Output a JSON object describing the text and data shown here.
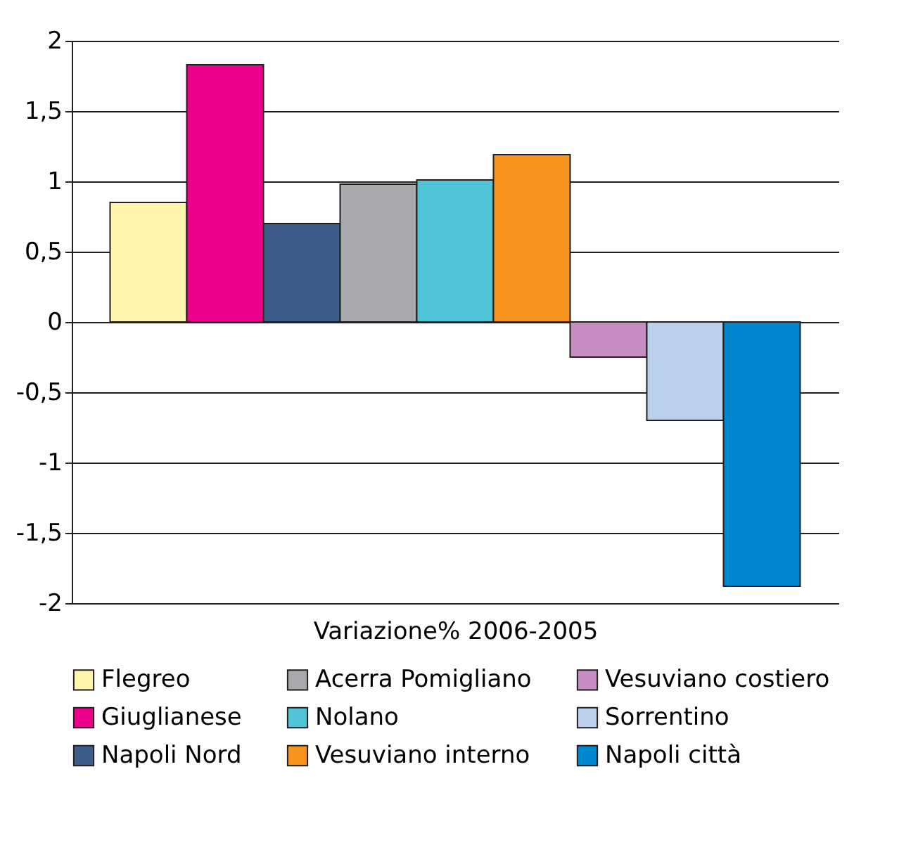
{
  "chart_data": {
    "type": "bar",
    "xlabel": "Variazione% 2006-2005",
    "categories": [
      null,
      null,
      null,
      null,
      null,
      null,
      null,
      null,
      null
    ],
    "series": [
      {
        "name": "Flegreo",
        "color": "#fff5ad",
        "values": [
          0.85,
          null,
          null,
          null,
          null,
          null,
          null,
          null,
          null
        ]
      },
      {
        "name": "Giuglianese",
        "color": "#ec008c",
        "values": [
          null,
          1.83,
          null,
          null,
          null,
          null,
          null,
          null,
          null
        ]
      },
      {
        "name": "Napoli Nord",
        "color": "#3d5d8b",
        "values": [
          null,
          null,
          0.7,
          null,
          null,
          null,
          null,
          null,
          null
        ]
      },
      {
        "name": "Acerra Pomigliano",
        "color": "#a7a9ac",
        "values": [
          null,
          null,
          null,
          0.98,
          null,
          null,
          null,
          null,
          null
        ]
      },
      {
        "name": "Nolano",
        "color": "#50c5d7",
        "values": [
          null,
          null,
          null,
          null,
          1.01,
          null,
          null,
          null,
          null
        ]
      },
      {
        "name": "Vesuviano interno",
        "color": "#f7941e",
        "values": [
          null,
          null,
          null,
          null,
          null,
          1.19,
          null,
          null,
          null
        ]
      },
      {
        "name": "Vesuviano costiero",
        "color": "#c78dc0",
        "values": [
          null,
          null,
          null,
          null,
          null,
          null,
          -0.25,
          null,
          null
        ]
      },
      {
        "name": "Sorrentino",
        "color": "#bad0ec",
        "values": [
          null,
          null,
          null,
          null,
          null,
          null,
          null,
          -0.7,
          null
        ]
      },
      {
        "name": "Napoli città",
        "color": "#0087cf",
        "values": [
          null,
          null,
          null,
          null,
          null,
          null,
          null,
          null,
          -1.88
        ]
      }
    ],
    "ylim": [
      -2,
      2
    ],
    "yticks": [
      -2,
      {
        "value": -1.5,
        "label": "-1,5"
      },
      -1,
      {
        "value": -0.5,
        "label": "-0,5"
      },
      0,
      {
        "value": 0.5,
        "label": "0,5"
      },
      1,
      {
        "value": 1.5,
        "label": "1,5"
      },
      2
    ],
    "grid": "y",
    "legend": "bottom"
  }
}
